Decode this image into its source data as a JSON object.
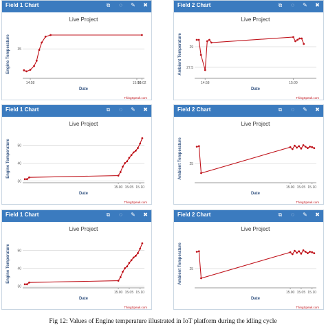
{
  "caption": "Fig 12: Values of Engine temperature illustrated in IoT platform during the idling cycle",
  "header_icons": [
    "external-link-icon",
    "comment-icon",
    "edit-icon",
    "close-icon"
  ],
  "header_glyphs": [
    "⧉",
    "◌",
    "✎",
    "✖"
  ],
  "colors": {
    "header": "#3b7bbf",
    "line": "#c0141c",
    "grid": "#e3e3e3"
  },
  "panels": [
    {
      "header_title": "Field 1 Chart"
    },
    {
      "header_title": "Field 2 Chart"
    },
    {
      "header_title": "Field 1 Chart"
    },
    {
      "header_title": "Field 2 Chart"
    },
    {
      "header_title": "Field 1 Chart"
    },
    {
      "header_title": "Field 2 Chart"
    }
  ],
  "chart_data": [
    {
      "type": "line",
      "title": "Live Project",
      "xlabel": "Date",
      "ylabel": "Engine Temperature",
      "credit": "ThingSpeak.com",
      "xlim": [
        14.55,
        15.03
      ],
      "ylim": [
        29.5,
        38.5
      ],
      "xticks": [
        {
          "v": 14.58,
          "label": "14:58"
        },
        {
          "v": 15.0,
          "label": "15:00"
        },
        {
          "v": 15.02,
          "label": "15:02"
        }
      ],
      "yticks": [
        {
          "v": 35,
          "label": "35"
        }
      ],
      "x": [
        14.555,
        14.565,
        14.58,
        14.595,
        14.605,
        14.615,
        14.625,
        14.64,
        14.66,
        15.02
      ],
      "y": [
        31.0,
        30.8,
        31.1,
        31.8,
        32.8,
        34.8,
        36.2,
        37.3,
        37.6,
        37.6
      ]
    },
    {
      "type": "line",
      "title": "Live Project",
      "xlabel": "Date",
      "ylabel": "Ambient Temperature",
      "credit": "ThingSpeak.com",
      "xlim": [
        14.53,
        15.11
      ],
      "ylim": [
        26.7,
        30.2
      ],
      "xticks": [
        {
          "v": 14.58,
          "label": "14:58"
        },
        {
          "v": 15.0,
          "label": "15:00"
        }
      ],
      "yticks": [
        {
          "v": 29,
          "label": "29"
        },
        {
          "v": 27.5,
          "label": "27.5"
        }
      ],
      "x": [
        14.54,
        14.55,
        14.56,
        14.58,
        14.59,
        14.6,
        14.61,
        15.0,
        15.01,
        15.02,
        15.03,
        15.04,
        15.05
      ],
      "y": [
        29.5,
        29.5,
        28.4,
        27.3,
        29.4,
        29.5,
        29.3,
        29.7,
        29.4,
        29.5,
        29.6,
        29.6,
        29.2
      ]
    },
    {
      "type": "line",
      "title": "Live Project",
      "xlabel": "Date",
      "ylabel": "Engine Temperature",
      "credit": "ThingSpeak.com",
      "xlim": [
        14.56,
        15.12
      ],
      "ylim": [
        29,
        56
      ],
      "xticks": [
        {
          "v": 15.0,
          "label": "15.00"
        },
        {
          "v": 15.05,
          "label": "15.05"
        },
        {
          "v": 15.1,
          "label": "15.10"
        }
      ],
      "yticks": [
        {
          "v": 30,
          "label": "30"
        },
        {
          "v": 40,
          "label": "40"
        },
        {
          "v": 50,
          "label": "50"
        }
      ],
      "x": [
        14.57,
        14.58,
        14.59,
        15.0,
        15.01,
        15.02,
        15.03,
        15.04,
        15.05,
        15.06,
        15.07,
        15.08,
        15.09,
        15.1,
        15.11
      ],
      "y": [
        31,
        31,
        32,
        33,
        35,
        38,
        40,
        41,
        43,
        44.5,
        46,
        47,
        48.5,
        51,
        54
      ]
    },
    {
      "type": "line",
      "title": "Live Project",
      "xlabel": "Date",
      "ylabel": "Ambient Temperature",
      "credit": "ThingSpeak.com",
      "xlim": [
        14.56,
        15.12
      ],
      "ylim": [
        21,
        31
      ],
      "xticks": [
        {
          "v": 15.0,
          "label": "15.00"
        },
        {
          "v": 15.05,
          "label": "15.05"
        },
        {
          "v": 15.1,
          "label": "15.10"
        }
      ],
      "yticks": [
        {
          "v": 25,
          "label": "25"
        }
      ],
      "x": [
        14.57,
        14.58,
        14.59,
        15.0,
        15.01,
        15.02,
        15.03,
        15.04,
        15.05,
        15.06,
        15.07,
        15.08,
        15.09,
        15.1,
        15.11
      ],
      "y": [
        28.5,
        28.6,
        23.0,
        28.4,
        28.0,
        28.7,
        28.3,
        28.6,
        28.1,
        28.8,
        28.5,
        28.2,
        28.5,
        28.4,
        28.2
      ]
    },
    {
      "type": "line",
      "title": "Live Project",
      "xlabel": "Date",
      "ylabel": "Engine Temperature",
      "credit": "ThingSpeak.com",
      "xlim": [
        14.56,
        15.12
      ],
      "ylim": [
        29,
        56
      ],
      "xticks": [
        {
          "v": 15.0,
          "label": "15.00"
        },
        {
          "v": 15.05,
          "label": "15.05"
        },
        {
          "v": 15.1,
          "label": "15.10"
        }
      ],
      "yticks": [
        {
          "v": 30,
          "label": "30"
        },
        {
          "v": 40,
          "label": "40"
        },
        {
          "v": 50,
          "label": "50"
        }
      ],
      "x": [
        14.57,
        14.58,
        14.59,
        15.0,
        15.01,
        15.02,
        15.03,
        15.04,
        15.05,
        15.06,
        15.07,
        15.08,
        15.09,
        15.1,
        15.11
      ],
      "y": [
        31,
        31,
        32,
        33,
        35,
        38,
        40,
        41,
        43,
        44.5,
        46,
        47,
        48.5,
        51,
        54
      ]
    },
    {
      "type": "line",
      "title": "Live Project",
      "xlabel": "Date",
      "ylabel": "Ambient Temperature",
      "credit": "ThingSpeak.com",
      "xlim": [
        14.56,
        15.12
      ],
      "ylim": [
        21,
        31
      ],
      "xticks": [
        {
          "v": 15.0,
          "label": "15.00"
        },
        {
          "v": 15.05,
          "label": "15.05"
        },
        {
          "v": 15.1,
          "label": "15.10"
        }
      ],
      "yticks": [
        {
          "v": 25,
          "label": "25"
        }
      ],
      "x": [
        14.57,
        14.58,
        14.59,
        15.0,
        15.01,
        15.02,
        15.03,
        15.04,
        15.05,
        15.06,
        15.07,
        15.08,
        15.09,
        15.1,
        15.11
      ],
      "y": [
        28.5,
        28.6,
        23.0,
        28.4,
        28.0,
        28.7,
        28.3,
        28.6,
        28.1,
        28.8,
        28.5,
        28.2,
        28.5,
        28.4,
        28.2
      ]
    }
  ]
}
